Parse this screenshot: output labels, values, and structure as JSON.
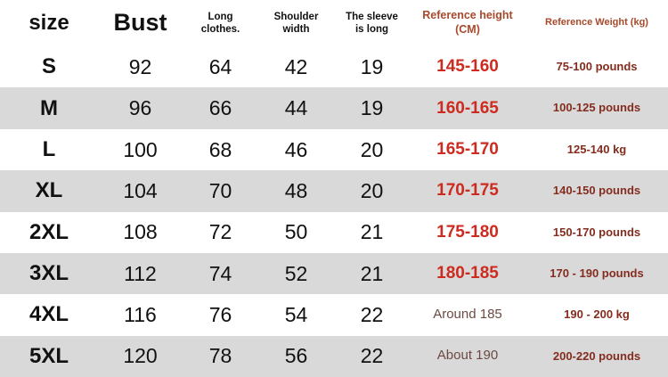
{
  "colors": {
    "stripe": "#d9d9d9",
    "header_reference_text": "#a8492c",
    "height_value": "#ce2b20",
    "height_value_muted": "#6b4a42",
    "weight_value": "#842c1e",
    "body_text": "#111111"
  },
  "table": {
    "headers": [
      {
        "id": "size",
        "lines": [
          "size"
        ]
      },
      {
        "id": "bust",
        "lines": [
          "Bust"
        ]
      },
      {
        "id": "length",
        "lines": [
          "Long",
          "clothes."
        ]
      },
      {
        "id": "shoulder",
        "lines": [
          "Shoulder",
          "width"
        ]
      },
      {
        "id": "sleeve",
        "lines": [
          "The sleeve",
          "is long"
        ]
      },
      {
        "id": "height",
        "lines": [
          "Reference height (CM)"
        ]
      },
      {
        "id": "weight",
        "lines": [
          "Reference Weight (kg)"
        ]
      }
    ],
    "rows": [
      {
        "size": "S",
        "bust": "92",
        "length": "64",
        "shoulder": "42",
        "sleeve": "19",
        "height": "145-160",
        "height_style": "strong",
        "weight": "75-100 pounds"
      },
      {
        "size": "M",
        "bust": "96",
        "length": "66",
        "shoulder": "44",
        "sleeve": "19",
        "height": "160-165",
        "height_style": "strong",
        "weight": "100-125 pounds"
      },
      {
        "size": "L",
        "bust": "100",
        "length": "68",
        "shoulder": "46",
        "sleeve": "20",
        "height": "165-170",
        "height_style": "strong",
        "weight": "125-140 kg"
      },
      {
        "size": "XL",
        "bust": "104",
        "length": "70",
        "shoulder": "48",
        "sleeve": "20",
        "height": "170-175",
        "height_style": "strong",
        "weight": "140-150 pounds"
      },
      {
        "size": "2XL",
        "bust": "108",
        "length": "72",
        "shoulder": "50",
        "sleeve": "21",
        "height": "175-180",
        "height_style": "strong",
        "weight": "150-170 pounds"
      },
      {
        "size": "3XL",
        "bust": "112",
        "length": "74",
        "shoulder": "52",
        "sleeve": "21",
        "height": "180-185",
        "height_style": "strong",
        "weight": "170 - 190 pounds"
      },
      {
        "size": "4XL",
        "bust": "116",
        "length": "76",
        "shoulder": "54",
        "sleeve": "22",
        "height": "Around 185",
        "height_style": "muted",
        "weight": "190 - 200 kg"
      },
      {
        "size": "5XL",
        "bust": "120",
        "length": "78",
        "shoulder": "56",
        "sleeve": "22",
        "height": "About 190",
        "height_style": "muted",
        "weight": "200-220 pounds"
      }
    ]
  },
  "chart_data": {
    "type": "table",
    "title": "",
    "columns": [
      "size",
      "Bust",
      "Long clothes.",
      "Shoulder width",
      "The sleeve is long",
      "Reference height (CM)",
      "Reference Weight (kg)"
    ],
    "rows": [
      [
        "S",
        92,
        64,
        42,
        19,
        "145-160",
        "75-100 pounds"
      ],
      [
        "M",
        96,
        66,
        44,
        19,
        "160-165",
        "100-125 pounds"
      ],
      [
        "L",
        100,
        68,
        46,
        20,
        "165-170",
        "125-140 kg"
      ],
      [
        "XL",
        104,
        70,
        48,
        20,
        "170-175",
        "140-150 pounds"
      ],
      [
        "2XL",
        108,
        72,
        50,
        21,
        "175-180",
        "150-170 pounds"
      ],
      [
        "3XL",
        112,
        74,
        52,
        21,
        "180-185",
        "170 - 190 pounds"
      ],
      [
        "4XL",
        116,
        76,
        54,
        22,
        "Around 185",
        "190 - 200 kg"
      ],
      [
        "5XL",
        120,
        78,
        56,
        22,
        "About 190",
        "200-220 pounds"
      ]
    ]
  }
}
